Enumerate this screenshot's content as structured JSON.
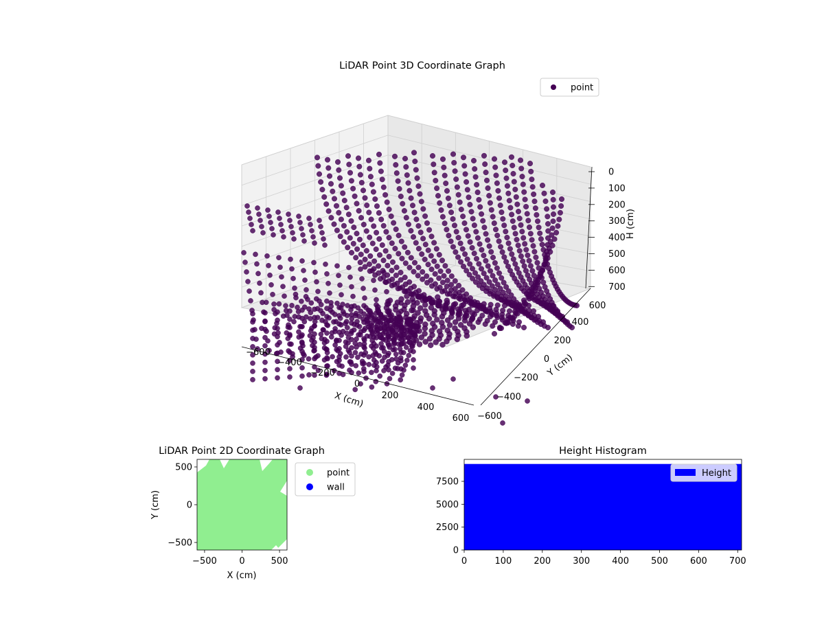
{
  "figure": {
    "background": "#ffffff"
  },
  "chart_data": [
    {
      "type": "scatter",
      "projection": "3d",
      "title": "LiDAR Point 3D Coordinate Graph",
      "xlabel": "X (cm)",
      "ylabel": "Y (cm)",
      "zlabel": "H (cm)",
      "xticks": [
        "−600",
        "−400",
        "−200",
        "0",
        "200",
        "400",
        "600"
      ],
      "yticks": [
        "−600",
        "−400",
        "−200",
        "0",
        "200",
        "400",
        "600"
      ],
      "zticks": [
        "0",
        "100",
        "200",
        "300",
        "400",
        "500",
        "600",
        "700"
      ],
      "xlim": [
        -600,
        600
      ],
      "ylim": [
        -600,
        600
      ],
      "zlim": [
        0,
        700
      ],
      "z_axis_inverted": true,
      "grid": true,
      "legend": {
        "position": "top-right",
        "entries": [
          {
            "label": "point",
            "color": "#440154"
          }
        ]
      },
      "series": [
        {
          "name": "point",
          "color": "#440154"
        }
      ]
    },
    {
      "type": "scatter",
      "title": "LiDAR Point 2D Coordinate Graph",
      "xlabel": "X (cm)",
      "ylabel": "Y (cm)",
      "xticks": [
        "−500",
        "0",
        "500"
      ],
      "yticks": [
        "−500",
        "0",
        "500"
      ],
      "xlim": [
        -600,
        600
      ],
      "ylim": [
        -600,
        600
      ],
      "legend": {
        "position": "outside-right",
        "entries": [
          {
            "label": "point",
            "color": "#90ee90"
          },
          {
            "label": "wall",
            "color": "#0000ff"
          }
        ]
      },
      "series": [
        {
          "name": "point",
          "color": "#90ee90"
        },
        {
          "name": "wall",
          "color": "#0000ff"
        }
      ]
    },
    {
      "type": "bar",
      "title": "Height Histogram",
      "xticks": [
        "0",
        "100",
        "200",
        "300",
        "400",
        "500",
        "600",
        "700"
      ],
      "yticks": [
        "0",
        "2500",
        "5000",
        "7500"
      ],
      "xlim": [
        0,
        710
      ],
      "ylim": [
        0,
        9900
      ],
      "bins": [
        {
          "x0": 0,
          "x1": 710,
          "count": 9400
        }
      ],
      "color": "#0000ff",
      "legend": {
        "position": "top-right",
        "entries": [
          {
            "label": "Height",
            "color": "#0000ff"
          }
        ]
      }
    }
  ]
}
